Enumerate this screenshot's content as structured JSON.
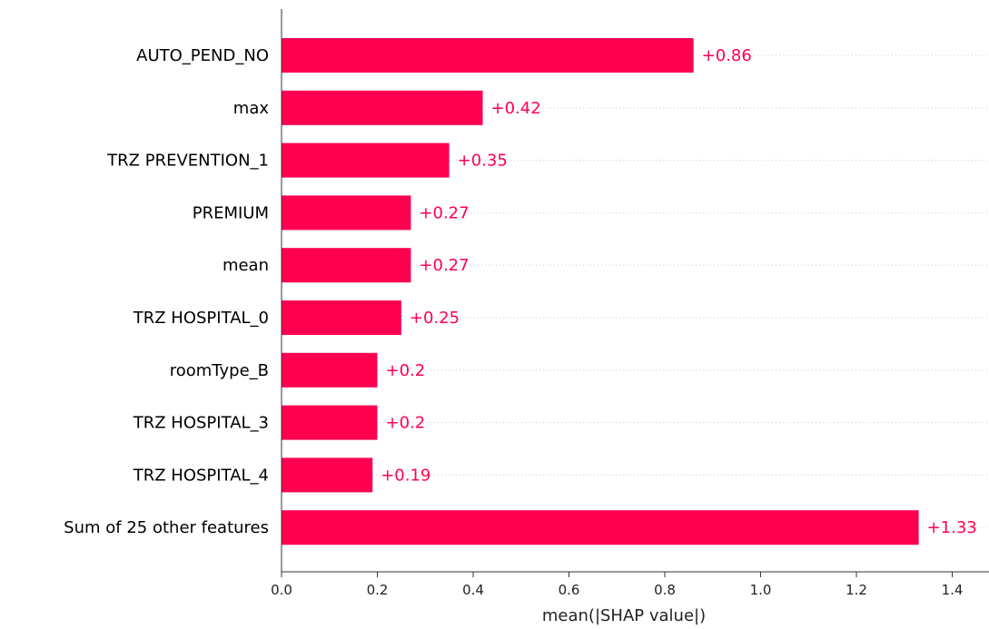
{
  "chart_data": {
    "type": "bar",
    "orientation": "horizontal",
    "categories": [
      "AUTO_PEND_NO",
      "max",
      "TRZ PREVENTION_1",
      "PREMIUM",
      "mean",
      "TRZ HOSPITAL_0",
      "roomType_B",
      "TRZ HOSPITAL_3",
      "TRZ HOSPITAL_4",
      "Sum of 25 other features"
    ],
    "values": [
      0.86,
      0.42,
      0.35,
      0.27,
      0.27,
      0.25,
      0.2,
      0.2,
      0.19,
      1.33
    ],
    "value_labels": [
      "+0.86",
      "+0.42",
      "+0.35",
      "+0.27",
      "+0.27",
      "+0.25",
      "+0.2",
      "+0.2",
      "+0.19",
      "+1.33"
    ],
    "xlabel": "mean(|SHAP value|)",
    "ylabel": "",
    "title": "",
    "xlim": [
      0,
      1.45
    ],
    "xticks": [
      0.0,
      0.2,
      0.4,
      0.6,
      0.8,
      1.0,
      1.2,
      1.4
    ],
    "xtick_labels": [
      "0.0",
      "0.2",
      "0.4",
      "0.6",
      "0.8",
      "1.0",
      "1.2",
      "1.4"
    ],
    "grid": "horizontal dotted lines per row",
    "colors": {
      "bar": "#ff0051",
      "value_label": "#ff0051",
      "axis": "#333333",
      "grid": "#cccccc"
    }
  }
}
